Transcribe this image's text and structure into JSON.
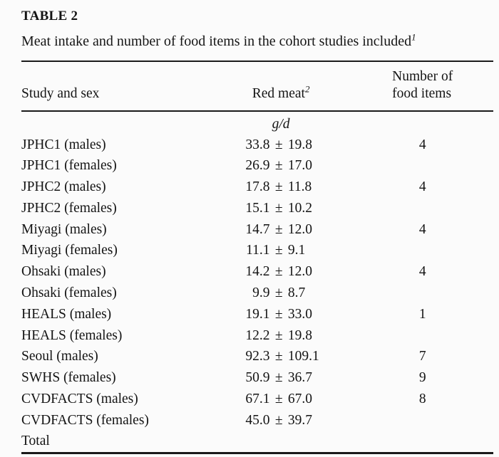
{
  "page": {
    "title": "TABLE 2",
    "caption": "Meat intake and number of food items in the cohort studies included",
    "caption_superscript": "1"
  },
  "table": {
    "plus_minus": "±",
    "headers": {
      "study": "Study and sex",
      "red_meat": "Red meat",
      "red_meat_superscript": "2",
      "items_line1": "Number of",
      "items_line2": "food items"
    },
    "units": "g/d",
    "rows": [
      {
        "study": "JPHC1 (males)",
        "mean": "33.8",
        "sd": "19.8",
        "items": "4"
      },
      {
        "study": "JPHC1 (females)",
        "mean": "26.9",
        "sd": "17.0",
        "items": ""
      },
      {
        "study": "JPHC2 (males)",
        "mean": "17.8",
        "sd": "11.8",
        "items": "4"
      },
      {
        "study": "JPHC2 (females)",
        "mean": "15.1",
        "sd": "10.2",
        "items": ""
      },
      {
        "study": "Miyagi (males)",
        "mean": "14.7",
        "sd": "12.0",
        "items": "4"
      },
      {
        "study": "Miyagi (females)",
        "mean": "11.1",
        "sd": "9.1",
        "items": ""
      },
      {
        "study": "Ohsaki (males)",
        "mean": "14.2",
        "sd": "12.0",
        "items": "4"
      },
      {
        "study": "Ohsaki (females)",
        "mean": "9.9",
        "sd": "8.7",
        "items": ""
      },
      {
        "study": "HEALS (males)",
        "mean": "19.1",
        "sd": "33.0",
        "items": "1"
      },
      {
        "study": "HEALS (females)",
        "mean": "12.2",
        "sd": "19.8",
        "items": ""
      },
      {
        "study": "Seoul (males)",
        "mean": "92.3",
        "sd": "109.1",
        "items": "7"
      },
      {
        "study": "SWHS (females)",
        "mean": "50.9",
        "sd": "36.7",
        "items": "9"
      },
      {
        "study": "CVDFACTS (males)",
        "mean": "67.1",
        "sd": "67.0",
        "items": "8"
      },
      {
        "study": "CVDFACTS (females)",
        "mean": "45.0",
        "sd": "39.7",
        "items": ""
      },
      {
        "study": "Total",
        "mean": "",
        "sd": "",
        "items": ""
      }
    ]
  }
}
